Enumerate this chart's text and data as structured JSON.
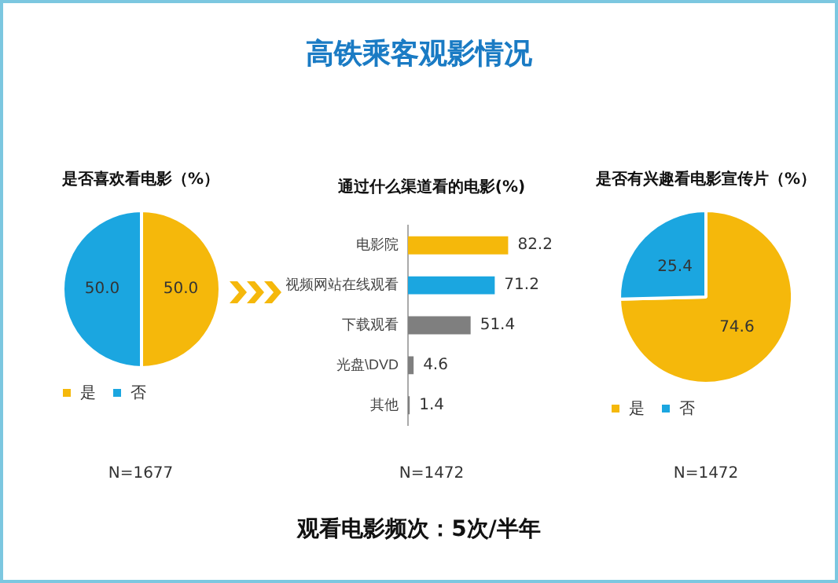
{
  "chart_data": [
    {
      "type": "other",
      "title": "高铁乘客观影情况"
    },
    {
      "type": "pie",
      "title": "是否喜欢看电影（%）",
      "categories": [
        "是",
        "否"
      ],
      "values": [
        50.0,
        50.0
      ],
      "value_labels": [
        "50.0",
        "50.0"
      ],
      "colors": [
        "#f5b80b",
        "#1ba6e0"
      ],
      "legend": "bottom",
      "annotations": [
        "N=1677"
      ]
    },
    {
      "type": "bar",
      "orientation": "horizontal",
      "title": "通过什么渠道看的电影(%)",
      "categories": [
        "电影院",
        "视频网站在线观看",
        "下载观看",
        "光盘\\DVD",
        "其他"
      ],
      "values": [
        82.2,
        71.2,
        51.4,
        4.6,
        1.4
      ],
      "colors": [
        "#f5b80b",
        "#1ba6e0",
        "#7f7f7f",
        "#7f7f7f",
        "#7f7f7f"
      ],
      "data_labels": true,
      "annotations": [
        "N=1472"
      ]
    },
    {
      "type": "pie",
      "title": "是否有兴趣看电影宣传片（%）",
      "categories": [
        "是",
        "否"
      ],
      "values": [
        74.6,
        25.4
      ],
      "colors": [
        "#f5b80b",
        "#1ba6e0"
      ],
      "data_labels": true,
      "legend": "bottom",
      "annotations": [
        "N=1472"
      ]
    },
    {
      "type": "other",
      "annotations": [
        "观看电影频次：5次/半年"
      ]
    }
  ]
}
